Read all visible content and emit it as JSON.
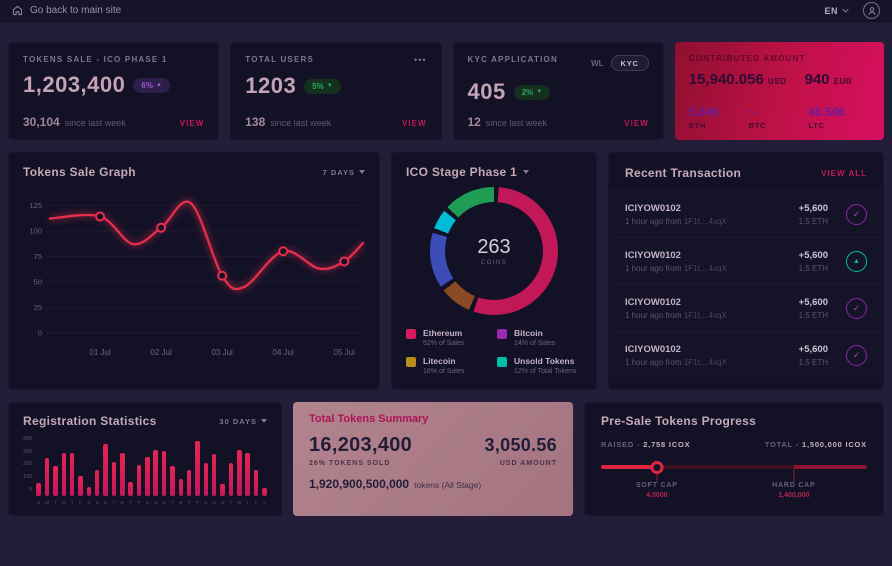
{
  "topbar": {
    "back_label": "Go back to main site",
    "lang": "EN"
  },
  "stat_cards": [
    {
      "title": "TOKENS SALE - ICO PHASE 1",
      "value": "1,203,400",
      "badge": "6%",
      "badge_arrow": "▲",
      "delta": "30,104",
      "delta_label": "since last week",
      "action": "VIEW"
    },
    {
      "title": "TOTAL USERS",
      "value": "1203",
      "badge": "5%",
      "badge_arrow": "▼",
      "delta": "138",
      "delta_label": "since last week",
      "action": "VIEW",
      "menu": "•••"
    },
    {
      "title": "KYC APPLICATION",
      "value": "405",
      "badge": "2%",
      "badge_arrow": "▼",
      "delta": "12",
      "delta_label": "since last week",
      "action": "VIEW",
      "toggle_wl": "WL",
      "toggle_kyc": "KYC"
    }
  ],
  "contributed": {
    "title": "CONTRIBUTED AMOUNT",
    "usd_value": "15,940.056",
    "usd_unit": "USD",
    "eur_value": "940",
    "eur_unit": "EUR",
    "coins": [
      {
        "value": "5.646",
        "unit": "ETH"
      },
      {
        "value": "~",
        "unit": "BTC"
      },
      {
        "value": "40.506",
        "unit": "LTC"
      }
    ]
  },
  "tokens_graph": {
    "title": "Tokens Sale Graph",
    "range": "7 DAYS"
  },
  "ico_stage": {
    "title": "ICO Stage Phase 1",
    "center_value": "263",
    "center_label": "COINS",
    "legend": [
      {
        "name": "Ethereum",
        "sub": "52% of Sales",
        "color": "#d81b60"
      },
      {
        "name": "Bitcoin",
        "sub": "14% of Sales",
        "color": "#9c27b0"
      },
      {
        "name": "Litecoin",
        "sub": "16% of Sales",
        "color": "#b58f1a"
      },
      {
        "name": "Unsold Tokens",
        "sub": "12% of Total Tokens",
        "color": "#00bfa5"
      }
    ],
    "arcs": [
      {
        "color": "#c21858",
        "value": 54
      },
      {
        "color": "#8a4a24",
        "value": 8
      },
      {
        "color": "#3d4db7",
        "value": 14
      },
      {
        "color": "#00bcd4",
        "value": 5
      },
      {
        "color": "#1f9d55",
        "value": 13
      }
    ]
  },
  "transactions": {
    "title": "Recent Transaction",
    "view_all": "VIEW ALL",
    "rows": [
      {
        "id": "ICIYOW0102",
        "time": "1 hour ago from",
        "address": "1F1t....4xqX",
        "amount": "+5,600",
        "eth": "1.5 ETH",
        "icon": "check"
      },
      {
        "id": "ICIYOW0102",
        "time": "1 hour ago from",
        "address": "1F1t....4xqX",
        "amount": "+5,600",
        "eth": "1.5 ETH",
        "icon": "eth"
      },
      {
        "id": "ICIYOW0102",
        "time": "1 hour ago from",
        "address": "1F1t....4xqX",
        "amount": "+5,600",
        "eth": "1.5 ETH",
        "icon": "check"
      },
      {
        "id": "ICIYOW0102",
        "time": "1 hour ago from",
        "address": "1F1t....4xqX",
        "amount": "+5,600",
        "eth": "1.5 ETH",
        "icon": "check"
      }
    ]
  },
  "registration": {
    "title": "Registration Statistics",
    "range": "30 DAYS"
  },
  "summary": {
    "title": "Total Tokens Summary",
    "tokens_value": "16,203,400",
    "tokens_label": "26% TOKENS SOLD",
    "usd_value": "3,050.56",
    "usd_label": "USD AMOUNT",
    "total_value": "1,920,900,500,000",
    "total_label": "tokens  (All Stage)"
  },
  "presale": {
    "title": "Pre-Sale Tokens Progress",
    "raised_label": "RAISED -",
    "raised_value": "2,758 ICOX",
    "total_label": "TOTAL -",
    "total_value": "1,500,000 ICOX",
    "soft_cap_label": "SOFT CAP",
    "soft_cap_value": "4,0000",
    "hard_cap_label": "HARD CAP",
    "hard_cap_value": "1,400,000",
    "progress_pct": 21,
    "soft_cap_pos": 21,
    "hard_cap_pos": 72.5,
    "fill_color": "#e02540",
    "track_color": "#3f1020",
    "tail_color": "#8c1630"
  },
  "chart_data": [
    {
      "type": "line",
      "title": "Tokens Sale Graph",
      "x": [
        "01 Jul",
        "02 Jul",
        "03 Jul",
        "04 Jul",
        "05 Jul"
      ],
      "values": [
        114,
        103,
        56,
        80,
        70
      ],
      "curve_points": [
        [
          0,
          112
        ],
        [
          0.16,
          114
        ],
        [
          0.265,
          87
        ],
        [
          0.355,
          103
        ],
        [
          0.45,
          127
        ],
        [
          0.55,
          56
        ],
        [
          0.62,
          45
        ],
        [
          0.745,
          80
        ],
        [
          0.86,
          63
        ],
        [
          0.94,
          70
        ],
        [
          1,
          88
        ]
      ],
      "marker_x": [
        0.16,
        0.355,
        0.55,
        0.745,
        0.94
      ],
      "yticks": [
        0,
        25,
        50,
        75,
        100,
        125
      ],
      "ylim": [
        0,
        137
      ],
      "line_color": "#e62e4d",
      "legend_position": "none",
      "grid": true
    },
    {
      "type": "pie",
      "title": "ICO Stage Phase 1",
      "center_text": "263 COINS",
      "labels": [
        "Ethereum",
        "Bitcoin",
        "Litecoin",
        "Unsold Tokens"
      ],
      "values": [
        52,
        14,
        16,
        12
      ],
      "value_labels": [
        "52% of Sales",
        "14% of Sales",
        "16% of Sales",
        "12% of Total Tokens"
      ]
    },
    {
      "type": "bar",
      "title": "Registration Statistics",
      "categories": [
        "S",
        "M",
        "T",
        "W",
        "T",
        "F",
        "S",
        "S",
        "M",
        "T",
        "W",
        "T",
        "F",
        "S",
        "S",
        "M",
        "T",
        "W",
        "T",
        "F",
        "S",
        "S",
        "M",
        "T",
        "W",
        "T",
        "F",
        "S"
      ],
      "values": [
        100,
        290,
        230,
        330,
        330,
        150,
        70,
        200,
        400,
        260,
        330,
        110,
        240,
        300,
        350,
        345,
        230,
        130,
        200,
        420,
        250,
        320,
        90,
        250,
        350,
        330,
        200,
        60
      ],
      "yticks": [
        400,
        300,
        200,
        100,
        0
      ],
      "ylim": [
        0,
        430
      ],
      "bar_color": "#d6224f"
    }
  ]
}
